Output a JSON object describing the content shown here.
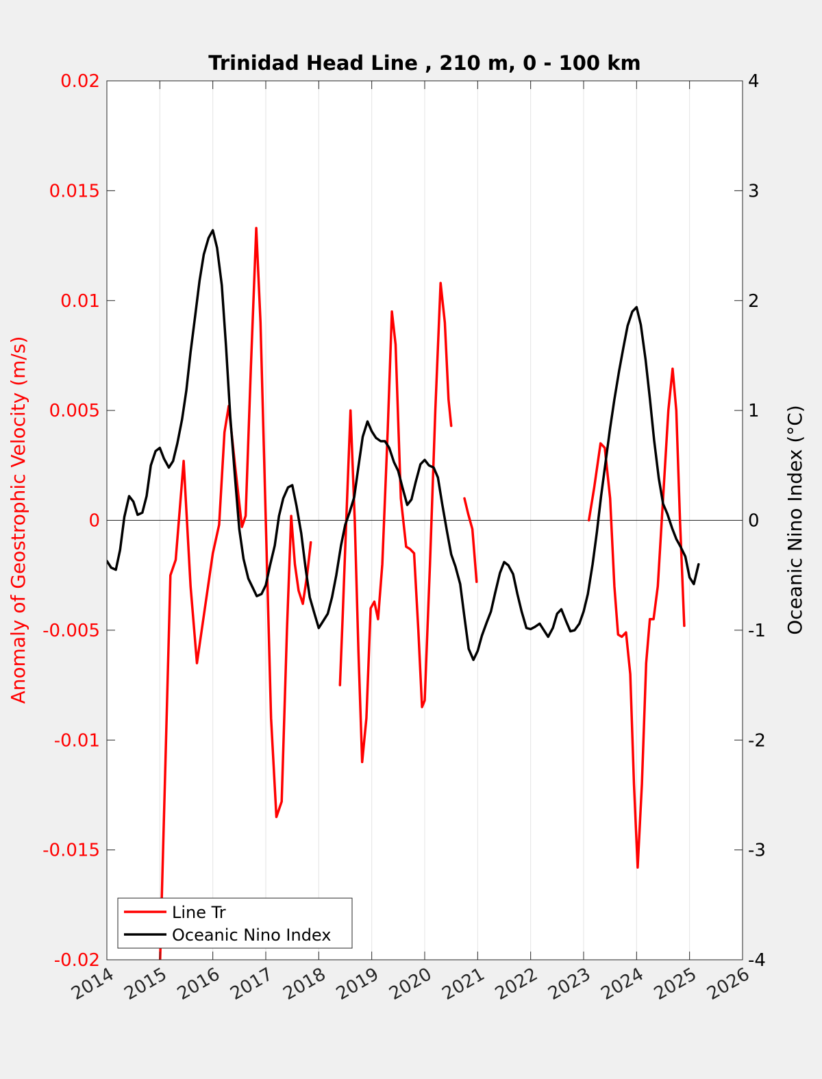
{
  "chart_data": {
    "type": "line",
    "title": "Trinidad Head Line , 210 m, 0 - 100 km",
    "xlim": [
      2014,
      2026
    ],
    "x_ticks": [
      "2014",
      "2015",
      "2016",
      "2017",
      "2018",
      "2019",
      "2020",
      "2021",
      "2022",
      "2023",
      "2024",
      "2025",
      "2026"
    ],
    "grid": "vertical",
    "legend_position": "bottom-left",
    "left_axis": {
      "label": "Anomaly of Geostrophic Velocity (m/s)",
      "ylim": [
        -0.02,
        0.02
      ],
      "ticks": [
        "-0.02",
        "-0.015",
        "-0.01",
        "-0.005",
        "0",
        "0.005",
        "0.01",
        "0.015",
        "0.02"
      ],
      "color": "#ff0000"
    },
    "right_axis": {
      "label": "Oceanic Nino Index (°C)",
      "ylim": [
        -4,
        4
      ],
      "ticks": [
        "-4",
        "-3",
        "-2",
        "-1",
        "0",
        "1",
        "2",
        "3",
        "4"
      ],
      "color": "#000000"
    },
    "series": [
      {
        "name": "Line Tr",
        "axis": "left",
        "color": "#ff0000",
        "segments": [
          [
            [
              2015.0,
              -0.0205
            ],
            [
              2015.1,
              -0.0115
            ],
            [
              2015.2,
              -0.0025
            ],
            [
              2015.3,
              -0.0018
            ],
            [
              2015.45,
              0.0027
            ],
            [
              2015.58,
              -0.003
            ],
            [
              2015.7,
              -0.0065
            ],
            [
              2015.85,
              -0.004
            ],
            [
              2016.0,
              -0.0015
            ],
            [
              2016.12,
              -0.0002
            ],
            [
              2016.22,
              0.004
            ],
            [
              2016.3,
              0.0052
            ],
            [
              2016.42,
              0.0025
            ],
            [
              2016.55,
              -0.0003
            ],
            [
              2016.62,
              0.0002
            ],
            [
              2016.72,
              0.007
            ],
            [
              2016.82,
              0.0133
            ],
            [
              2016.9,
              0.009
            ],
            [
              2017.0,
              0.0
            ],
            [
              2017.1,
              -0.009
            ],
            [
              2017.2,
              -0.0135
            ],
            [
              2017.3,
              -0.0128
            ],
            [
              2017.4,
              -0.005
            ],
            [
              2017.48,
              0.0002
            ],
            [
              2017.55,
              -0.002
            ],
            [
              2017.62,
              -0.0032
            ],
            [
              2017.7,
              -0.0038
            ],
            [
              2017.78,
              -0.0025
            ],
            [
              2017.85,
              -0.001
            ]
          ],
          [
            [
              2018.4,
              -0.0075
            ],
            [
              2018.45,
              -0.0045
            ],
            [
              2018.52,
              0.0
            ],
            [
              2018.6,
              0.005
            ],
            [
              2018.68,
              0.0
            ],
            [
              2018.75,
              -0.006
            ],
            [
              2018.82,
              -0.011
            ],
            [
              2018.9,
              -0.009
            ],
            [
              2018.98,
              -0.004
            ],
            [
              2019.05,
              -0.0037
            ],
            [
              2019.12,
              -0.0045
            ],
            [
              2019.2,
              -0.002
            ],
            [
              2019.3,
              0.004
            ],
            [
              2019.38,
              0.0095
            ],
            [
              2019.45,
              0.008
            ],
            [
              2019.55,
              0.001
            ],
            [
              2019.65,
              -0.0012
            ],
            [
              2019.72,
              -0.0013
            ],
            [
              2019.8,
              -0.0015
            ],
            [
              2019.88,
              -0.005
            ],
            [
              2019.95,
              -0.0085
            ],
            [
              2020.0,
              -0.0082
            ],
            [
              2020.1,
              -0.002
            ],
            [
              2020.2,
              0.005
            ],
            [
              2020.3,
              0.0108
            ],
            [
              2020.38,
              0.009
            ],
            [
              2020.45,
              0.0055
            ],
            [
              2020.5,
              0.0043
            ]
          ],
          [
            [
              2020.75,
              0.001
            ],
            [
              2020.82,
              0.0003
            ],
            [
              2020.9,
              -0.0004
            ],
            [
              2020.98,
              -0.0028
            ]
          ],
          [
            [
              2023.1,
              0.0
            ],
            [
              2023.2,
              0.0015
            ],
            [
              2023.32,
              0.0035
            ],
            [
              2023.4,
              0.0033
            ],
            [
              2023.5,
              0.001
            ],
            [
              2023.58,
              -0.003
            ],
            [
              2023.65,
              -0.0052
            ],
            [
              2023.72,
              -0.0053
            ],
            [
              2023.8,
              -0.0051
            ],
            [
              2023.88,
              -0.007
            ],
            [
              2023.95,
              -0.012
            ],
            [
              2024.02,
              -0.0158
            ],
            [
              2024.1,
              -0.012
            ],
            [
              2024.18,
              -0.0065
            ],
            [
              2024.25,
              -0.0045
            ],
            [
              2024.32,
              -0.0045
            ],
            [
              2024.4,
              -0.003
            ],
            [
              2024.5,
              0.001
            ],
            [
              2024.6,
              0.005
            ],
            [
              2024.68,
              0.0069
            ],
            [
              2024.75,
              0.005
            ],
            [
              2024.82,
              0.0
            ],
            [
              2024.9,
              -0.0048
            ]
          ]
        ]
      },
      {
        "name": "Oceanic Nino Index",
        "axis": "right",
        "color": "#000000",
        "segments": [
          [
            [
              2014.0,
              -0.37
            ],
            [
              2014.08,
              -0.43
            ],
            [
              2014.17,
              -0.45
            ],
            [
              2014.25,
              -0.27
            ],
            [
              2014.33,
              0.03
            ],
            [
              2014.42,
              0.22
            ],
            [
              2014.5,
              0.17
            ],
            [
              2014.58,
              0.05
            ],
            [
              2014.67,
              0.07
            ],
            [
              2014.75,
              0.22
            ],
            [
              2014.83,
              0.5
            ],
            [
              2014.92,
              0.63
            ],
            [
              2015.0,
              0.66
            ],
            [
              2015.08,
              0.56
            ],
            [
              2015.17,
              0.48
            ],
            [
              2015.25,
              0.54
            ],
            [
              2015.33,
              0.7
            ],
            [
              2015.42,
              0.92
            ],
            [
              2015.5,
              1.18
            ],
            [
              2015.58,
              1.53
            ],
            [
              2015.67,
              1.87
            ],
            [
              2015.75,
              2.18
            ],
            [
              2015.83,
              2.42
            ],
            [
              2015.92,
              2.57
            ],
            [
              2016.0,
              2.64
            ],
            [
              2016.08,
              2.48
            ],
            [
              2016.17,
              2.14
            ],
            [
              2016.25,
              1.58
            ],
            [
              2016.33,
              0.94
            ],
            [
              2016.42,
              0.39
            ],
            [
              2016.5,
              -0.08
            ],
            [
              2016.58,
              -0.35
            ],
            [
              2016.67,
              -0.53
            ],
            [
              2016.75,
              -0.61
            ],
            [
              2016.83,
              -0.69
            ],
            [
              2016.92,
              -0.67
            ],
            [
              2017.0,
              -0.59
            ],
            [
              2017.08,
              -0.41
            ],
            [
              2017.17,
              -0.23
            ],
            [
              2017.25,
              0.04
            ],
            [
              2017.33,
              0.2
            ],
            [
              2017.42,
              0.3
            ],
            [
              2017.5,
              0.32
            ],
            [
              2017.58,
              0.13
            ],
            [
              2017.67,
              -0.12
            ],
            [
              2017.75,
              -0.43
            ],
            [
              2017.83,
              -0.7
            ],
            [
              2017.92,
              -0.85
            ],
            [
              2018.0,
              -0.98
            ],
            [
              2018.08,
              -0.92
            ],
            [
              2018.17,
              -0.85
            ],
            [
              2018.25,
              -0.7
            ],
            [
              2018.33,
              -0.5
            ],
            [
              2018.42,
              -0.23
            ],
            [
              2018.5,
              -0.04
            ],
            [
              2018.58,
              0.07
            ],
            [
              2018.67,
              0.21
            ],
            [
              2018.75,
              0.49
            ],
            [
              2018.83,
              0.76
            ],
            [
              2018.92,
              0.9
            ],
            [
              2019.0,
              0.81
            ],
            [
              2019.08,
              0.75
            ],
            [
              2019.17,
              0.72
            ],
            [
              2019.25,
              0.72
            ],
            [
              2019.33,
              0.66
            ],
            [
              2019.42,
              0.53
            ],
            [
              2019.5,
              0.45
            ],
            [
              2019.58,
              0.3
            ],
            [
              2019.67,
              0.14
            ],
            [
              2019.75,
              0.19
            ],
            [
              2019.83,
              0.35
            ],
            [
              2019.92,
              0.51
            ],
            [
              2020.0,
              0.55
            ],
            [
              2020.08,
              0.5
            ],
            [
              2020.17,
              0.48
            ],
            [
              2020.25,
              0.39
            ],
            [
              2020.33,
              0.15
            ],
            [
              2020.42,
              -0.1
            ],
            [
              2020.5,
              -0.31
            ],
            [
              2020.58,
              -0.42
            ],
            [
              2020.67,
              -0.58
            ],
            [
              2020.75,
              -0.88
            ],
            [
              2020.83,
              -1.17
            ],
            [
              2020.92,
              -1.27
            ],
            [
              2021.0,
              -1.19
            ],
            [
              2021.08,
              -1.05
            ],
            [
              2021.17,
              -0.93
            ],
            [
              2021.25,
              -0.83
            ],
            [
              2021.33,
              -0.66
            ],
            [
              2021.42,
              -0.48
            ],
            [
              2021.5,
              -0.38
            ],
            [
              2021.58,
              -0.41
            ],
            [
              2021.67,
              -0.49
            ],
            [
              2021.75,
              -0.67
            ],
            [
              2021.83,
              -0.83
            ],
            [
              2021.92,
              -0.98
            ],
            [
              2022.0,
              -0.99
            ],
            [
              2022.08,
              -0.97
            ],
            [
              2022.17,
              -0.94
            ],
            [
              2022.25,
              -1.0
            ],
            [
              2022.33,
              -1.06
            ],
            [
              2022.42,
              -0.98
            ],
            [
              2022.5,
              -0.85
            ],
            [
              2022.58,
              -0.81
            ],
            [
              2022.67,
              -0.92
            ],
            [
              2022.75,
              -1.01
            ],
            [
              2022.83,
              -1.0
            ],
            [
              2022.92,
              -0.94
            ],
            [
              2023.0,
              -0.83
            ],
            [
              2023.08,
              -0.67
            ],
            [
              2023.17,
              -0.4
            ],
            [
              2023.25,
              -0.11
            ],
            [
              2023.33,
              0.22
            ],
            [
              2023.42,
              0.55
            ],
            [
              2023.5,
              0.84
            ],
            [
              2023.58,
              1.1
            ],
            [
              2023.67,
              1.36
            ],
            [
              2023.75,
              1.57
            ],
            [
              2023.83,
              1.77
            ],
            [
              2023.92,
              1.9
            ],
            [
              2024.0,
              1.94
            ],
            [
              2024.08,
              1.78
            ],
            [
              2024.17,
              1.46
            ],
            [
              2024.25,
              1.11
            ],
            [
              2024.33,
              0.73
            ],
            [
              2024.42,
              0.38
            ],
            [
              2024.5,
              0.15
            ],
            [
              2024.58,
              0.06
            ],
            [
              2024.67,
              -0.07
            ],
            [
              2024.75,
              -0.17
            ],
            [
              2024.83,
              -0.24
            ],
            [
              2024.92,
              -0.33
            ],
            [
              2025.0,
              -0.52
            ],
            [
              2025.08,
              -0.58
            ],
            [
              2025.17,
              -0.4
            ]
          ]
        ]
      }
    ]
  }
}
